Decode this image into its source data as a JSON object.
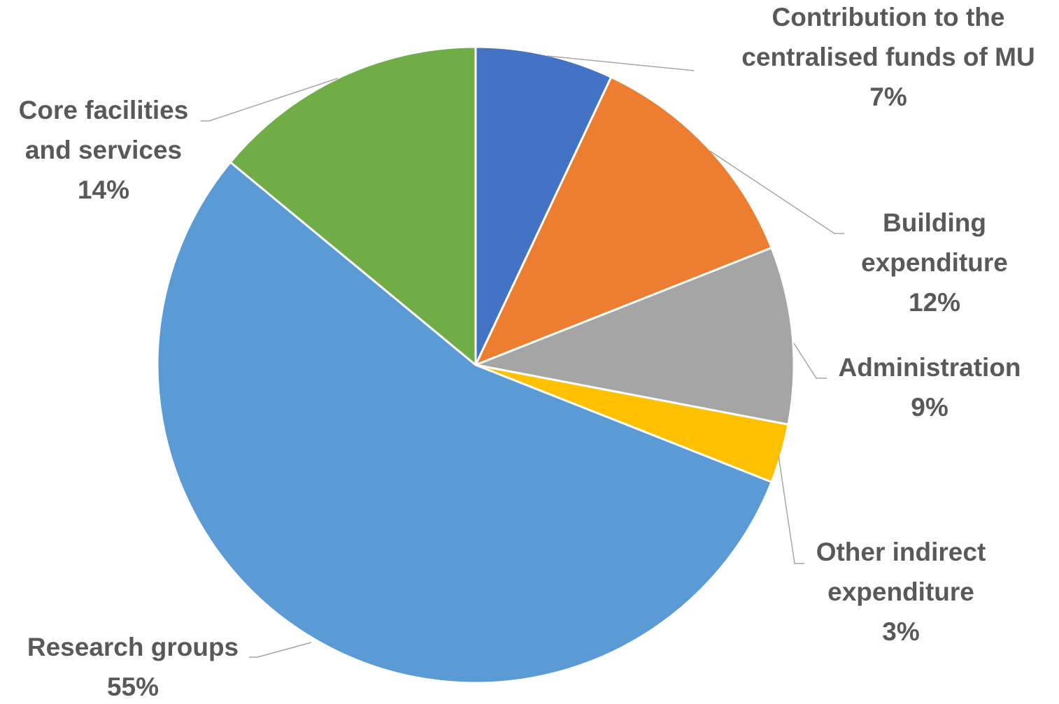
{
  "chart_data": {
    "type": "pie",
    "title": "",
    "slices": [
      {
        "name": "Contribution to the centralised funds of MU",
        "value": 7,
        "label_lines": [
          "Contribution to the",
          "centralised funds of MU"
        ],
        "pct_label": "7%",
        "color": "#4472C4"
      },
      {
        "name": "Building expenditure",
        "value": 12,
        "label_lines": [
          "Building",
          "expenditure"
        ],
        "pct_label": "12%",
        "color": "#ED7D31"
      },
      {
        "name": "Administration",
        "value": 9,
        "label_lines": [
          "Administration"
        ],
        "pct_label": "9%",
        "color": "#A5A5A5"
      },
      {
        "name": "Other indirect expenditure",
        "value": 3,
        "label_lines": [
          "Other indirect",
          "expenditure"
        ],
        "pct_label": "3%",
        "color": "#FFC000"
      },
      {
        "name": "Research groups",
        "value": 55,
        "label_lines": [
          "Research groups"
        ],
        "pct_label": "55%",
        "color": "#5B9BD5"
      },
      {
        "name": "Core facilities and services",
        "value": 14,
        "label_lines": [
          "Core facilities",
          "and services"
        ],
        "pct_label": "14%",
        "color": "#70AD47"
      }
    ],
    "legend": "none",
    "start_angle_deg": 0,
    "direction": "clockwise"
  }
}
